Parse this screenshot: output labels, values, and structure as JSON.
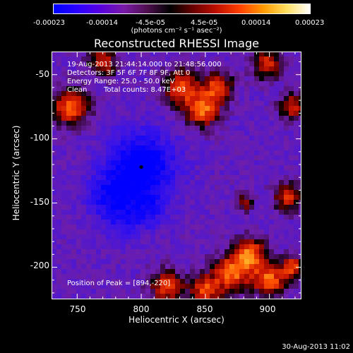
{
  "colorbar": {
    "ticks": [
      "-0.00023",
      "-0.00014",
      "-4.5e-05",
      "4.5e-05",
      "0.00014",
      "0.00023"
    ],
    "units": "(photons cm⁻² s⁻¹ asec⁻²)",
    "colors": [
      "#0000ff",
      "#2a00ff",
      "#5800e0",
      "#7a1aa8",
      "#501050",
      "#000000",
      "#6a0000",
      "#c01000",
      "#ff4000",
      "#ff9a00",
      "#ffe060",
      "#ffffff"
    ]
  },
  "title": "Reconstructed RHESSI Image",
  "overlay": {
    "time_range": "19-Aug-2013 21:44:14.000 to 21:48:56.000",
    "detectors": "Detectors: 3F 5F 6F 7F 8F 9F, Att 0",
    "energy": "Energy Range: 25.0 - 50.0 keV",
    "clean": "Clean",
    "total_counts": "Total counts: 8.47E+03",
    "peak": "Position of Peak = [894,-220]"
  },
  "chart_data": {
    "type": "heatmap",
    "title": "Reconstructed RHESSI Image",
    "xlabel": "Heliocentric X (arcsec)",
    "ylabel": "Heliocentric Y (arcsec)",
    "xlim": [
      730,
      925
    ],
    "ylim": [
      -225,
      -32
    ],
    "xticks": [
      750,
      800,
      850,
      900
    ],
    "yticks": [
      -50,
      -100,
      -150,
      -200
    ],
    "colorbar_range": [
      -0.00023,
      0.00023
    ],
    "marker": [
      800,
      -122
    ],
    "peak_position": [
      894,
      -220
    ]
  },
  "footer": {
    "timestamp": "30-Aug-2013 11:02"
  }
}
